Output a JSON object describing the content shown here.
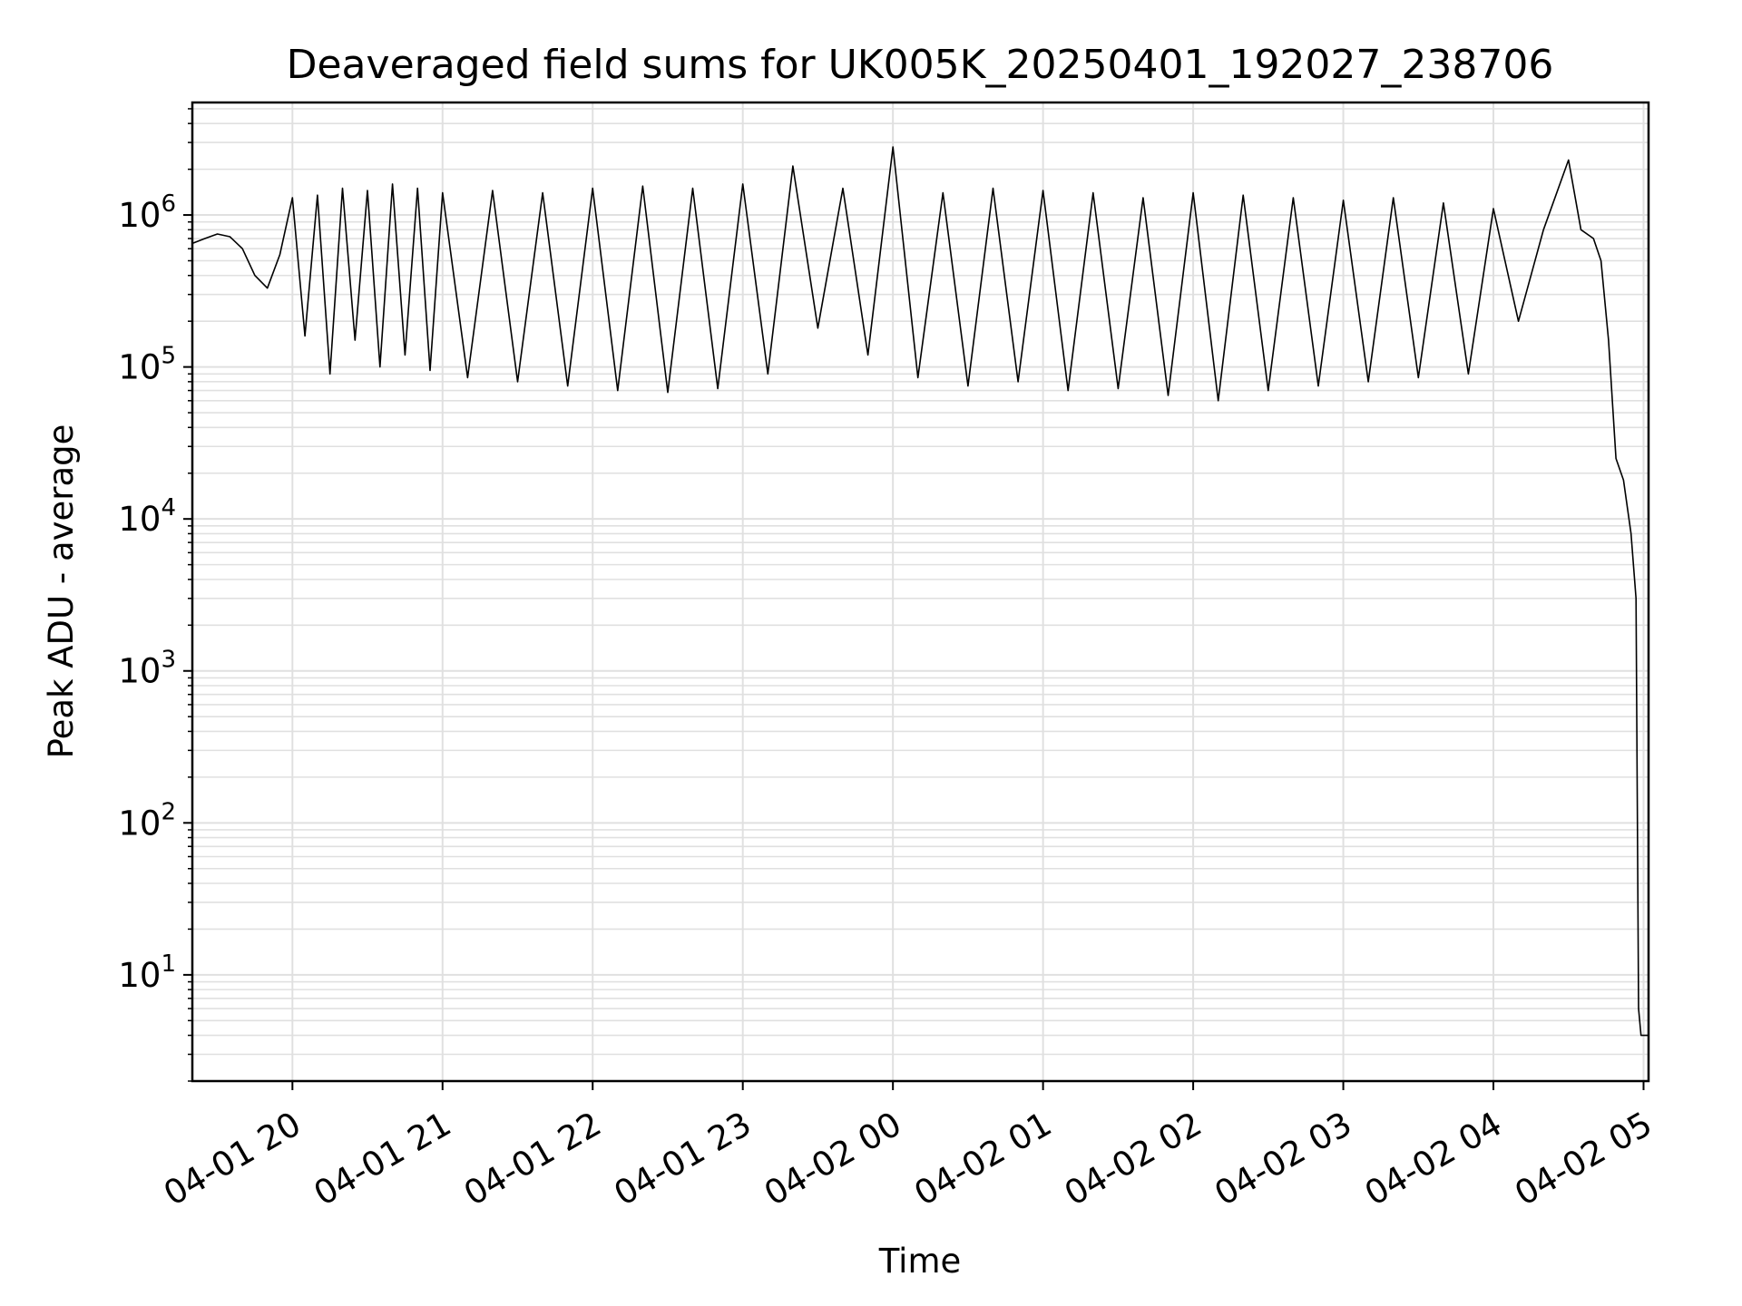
{
  "chart_data": {
    "type": "line",
    "title": "Deaveraged field sums for UK005K_20250401_192027_238706",
    "xlabel": "Time",
    "ylabel": "Peak ADU - average",
    "yscale": "log",
    "ylim": [
      2,
      5500000
    ],
    "xlim": [
      "2025-04-01 19:20",
      "2025-04-02 05:02"
    ],
    "grid": true,
    "line_color": "#000000",
    "grid_color": "#e0e0e0",
    "x_ticks": [
      {
        "time": "2025-04-01 20:00",
        "label": "04-01 20"
      },
      {
        "time": "2025-04-01 21:00",
        "label": "04-01 21"
      },
      {
        "time": "2025-04-01 22:00",
        "label": "04-01 22"
      },
      {
        "time": "2025-04-01 23:00",
        "label": "04-01 23"
      },
      {
        "time": "2025-04-02 00:00",
        "label": "04-02 00"
      },
      {
        "time": "2025-04-02 01:00",
        "label": "04-02 01"
      },
      {
        "time": "2025-04-02 02:00",
        "label": "04-02 02"
      },
      {
        "time": "2025-04-02 03:00",
        "label": "04-02 03"
      },
      {
        "time": "2025-04-02 04:00",
        "label": "04-02 04"
      },
      {
        "time": "2025-04-02 05:00",
        "label": "04-02 05"
      }
    ],
    "y_ticks": [
      {
        "value": 10,
        "base": "10",
        "exp": "1"
      },
      {
        "value": 100,
        "base": "10",
        "exp": "2"
      },
      {
        "value": 1000,
        "base": "10",
        "exp": "3"
      },
      {
        "value": 10000,
        "base": "10",
        "exp": "4"
      },
      {
        "value": 100000,
        "base": "10",
        "exp": "5"
      },
      {
        "value": 1000000,
        "base": "10",
        "exp": "6"
      }
    ],
    "series": [
      {
        "x": [
          "2025-04-01 19:20",
          "2025-04-01 19:25",
          "2025-04-01 19:30",
          "2025-04-01 19:35",
          "2025-04-01 19:40",
          "2025-04-01 19:45",
          "2025-04-01 19:50",
          "2025-04-01 19:55",
          "2025-04-01 20:00",
          "2025-04-01 20:05",
          "2025-04-01 20:10",
          "2025-04-01 20:15",
          "2025-04-01 20:20",
          "2025-04-01 20:25",
          "2025-04-01 20:30",
          "2025-04-01 20:35",
          "2025-04-01 20:40",
          "2025-04-01 20:45",
          "2025-04-01 20:50",
          "2025-04-01 20:55",
          "2025-04-01 21:00",
          "2025-04-01 21:10",
          "2025-04-01 21:20",
          "2025-04-01 21:30",
          "2025-04-01 21:40",
          "2025-04-01 21:50",
          "2025-04-01 22:00",
          "2025-04-01 22:10",
          "2025-04-01 22:20",
          "2025-04-01 22:30",
          "2025-04-01 22:40",
          "2025-04-01 22:50",
          "2025-04-01 23:00",
          "2025-04-01 23:10",
          "2025-04-01 23:20",
          "2025-04-01 23:30",
          "2025-04-01 23:40",
          "2025-04-01 23:50",
          "2025-04-02 00:00",
          "2025-04-02 00:10",
          "2025-04-02 00:20",
          "2025-04-02 00:30",
          "2025-04-02 00:40",
          "2025-04-02 00:50",
          "2025-04-02 01:00",
          "2025-04-02 01:10",
          "2025-04-02 01:20",
          "2025-04-02 01:30",
          "2025-04-02 01:40",
          "2025-04-02 01:50",
          "2025-04-02 02:00",
          "2025-04-02 02:10",
          "2025-04-02 02:20",
          "2025-04-02 02:30",
          "2025-04-02 02:40",
          "2025-04-02 02:50",
          "2025-04-02 03:00",
          "2025-04-02 03:10",
          "2025-04-02 03:20",
          "2025-04-02 03:30",
          "2025-04-02 03:40",
          "2025-04-02 03:50",
          "2025-04-02 04:00",
          "2025-04-02 04:10",
          "2025-04-02 04:20",
          "2025-04-02 04:30",
          "2025-04-02 04:35",
          "2025-04-02 04:40",
          "2025-04-02 04:43",
          "2025-04-02 04:46",
          "2025-04-02 04:49",
          "2025-04-02 04:52",
          "2025-04-02 04:55",
          "2025-04-02 04:57",
          "2025-04-02 04:58",
          "2025-04-02 04:59",
          "2025-04-02 05:00",
          "2025-04-02 05:01",
          "2025-04-02 05:02"
        ],
        "y": [
          650000,
          700000,
          750000,
          720000,
          600000,
          400000,
          330000,
          550000,
          1300000,
          160000,
          1350000,
          90000,
          1500000,
          150000,
          1450000,
          100000,
          1600000,
          120000,
          1500000,
          95000,
          1400000,
          85000,
          1450000,
          80000,
          1400000,
          75000,
          1500000,
          70000,
          1550000,
          68000,
          1500000,
          72000,
          1600000,
          90000,
          2100000,
          180000,
          1500000,
          120000,
          2800000,
          85000,
          1400000,
          75000,
          1500000,
          80000,
          1450000,
          70000,
          1400000,
          72000,
          1300000,
          65000,
          1400000,
          60000,
          1350000,
          70000,
          1300000,
          75000,
          1250000,
          80000,
          1300000,
          85000,
          1200000,
          90000,
          1100000,
          200000,
          800000,
          2300000,
          800000,
          700000,
          500000,
          150000,
          25000,
          18000,
          8000,
          3000,
          6,
          4,
          4,
          4,
          4
        ]
      }
    ]
  }
}
